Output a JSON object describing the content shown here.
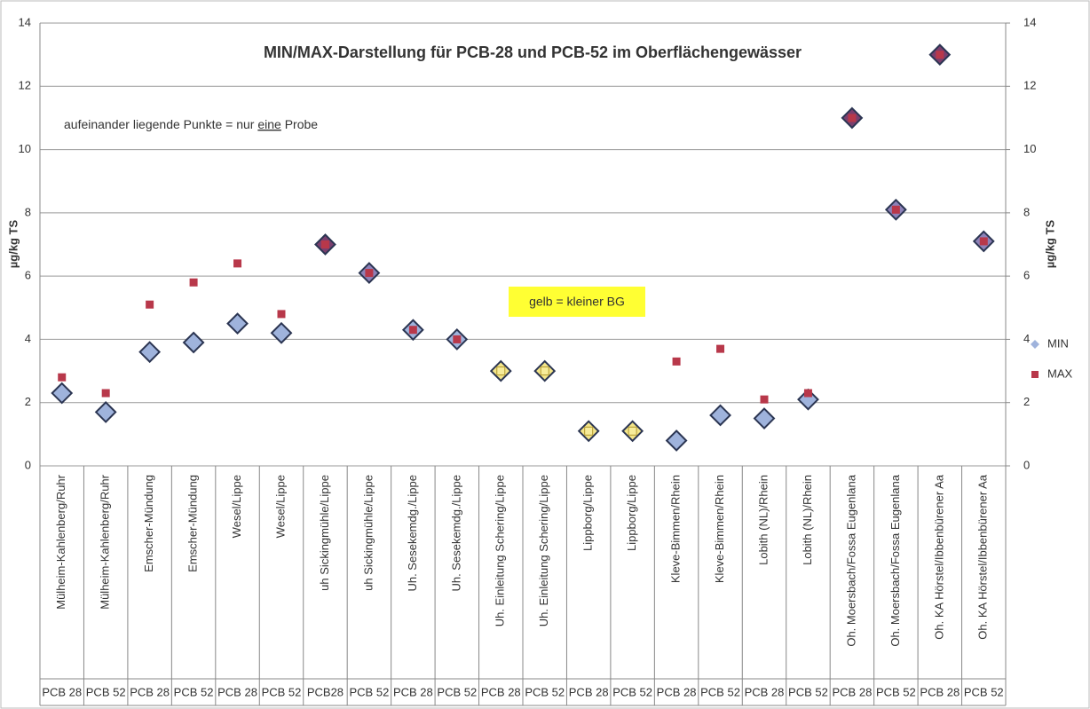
{
  "chart_data": {
    "type": "scatter",
    "title": "MIN/MAX-Darstellung für PCB-28 und PCB-52 im Oberflächengewässer",
    "annotation_parts": [
      "aufeinander liegende Punkte = nur ",
      "eine",
      " Probe"
    ],
    "annotation_2": "gelb = kleiner BG",
    "y_label": "µg/kg TS",
    "y2_label": "µg/kg TS",
    "categories": [
      "Mülheim-Kahlenberg/Ruhr",
      "Mülheim-Kahlenberg/Ruhr",
      "Emscher-Mündung",
      "Emscher-Mündung",
      "Wesel/Lippe",
      "Wesel/Lippe",
      "uh Sickingmühle/Lippe",
      "uh Sickingmühle/Lippe",
      "Uh. Sesekemdg./Lippe",
      "Uh. Sesekemdg./Lippe",
      "Uh. Einleitung Schering/Lippe",
      "Uh. Einleitung Schering/Lippe",
      "Lippborg/Lippe",
      "Lippborg/Lippe",
      "Kleve-Bimmen/Rhein",
      "Kleve-Bimmen/Rhein",
      "Lobith (NL)/Rhein",
      "Lobith (NL)/Rhein",
      "Oh. Moersbach/Fossa Eugenlana",
      "Oh. Moersbach/Fossa Eugenlana",
      "Oh. KA Hörstel/Ibbenbürener Aa",
      "Oh. KA Hörstel/Ibbenbürener Aa"
    ],
    "sub_categories": [
      "PCB 28",
      "PCB 52",
      "PCB 28",
      "PCB 52",
      "PCB 28",
      "PCB 52",
      "PCB28",
      "PCB 52",
      "PCB 28",
      "PCB 52",
      "PCB 28",
      "PCB 52",
      "PCB 28",
      "PCB 52",
      "PCB 28",
      "PCB 52",
      "PCB 28",
      "PCB 52",
      "PCB 28",
      "PCB 52",
      "PCB 28",
      "PCB 52"
    ],
    "series": [
      {
        "name": "MIN",
        "color": "#9fb3dc",
        "marker": "diamond",
        "point_colors": [
          "#9fb3dc",
          "#9fb3dc",
          "#9fb3dc",
          "#9fb3dc",
          "#9fb3dc",
          "#9fb3dc",
          "#7a3f6e",
          "#8d82b8",
          "#9fb3dc",
          "#9fb3dc",
          "#f3e58a",
          "#f3e58a",
          "#f3e58a",
          "#f3e58a",
          "#9fb3dc",
          "#9fb3dc",
          "#9fb3dc",
          "#9fb3dc",
          "#7a3f6e",
          "#8d82b8",
          "#7a3f6e",
          "#8d82b8"
        ],
        "values": [
          2.3,
          1.7,
          3.6,
          3.9,
          4.5,
          4.2,
          7.0,
          6.1,
          4.3,
          4.0,
          3.0,
          3.0,
          1.1,
          1.1,
          0.8,
          1.6,
          1.5,
          2.1,
          11,
          8.1,
          13,
          7.1
        ]
      },
      {
        "name": "MAX",
        "color": "#b8384a",
        "marker": "square",
        "point_colors": [
          "#b8384a",
          "#b8384a",
          "#b8384a",
          "#b8384a",
          "#b8384a",
          "#b8384a",
          "#b8384a",
          "#b8384a",
          "#b8384a",
          "#b8384a",
          "#f7ec9a",
          "#f7ec9a",
          "#f7ec9a",
          "#f7ec9a",
          "#b8384a",
          "#b8384a",
          "#b8384a",
          "#b8384a",
          "#b8384a",
          "#b8384a",
          "#b8384a",
          "#b8384a"
        ],
        "values": [
          2.8,
          2.3,
          5.1,
          5.8,
          6.4,
          4.8,
          7.0,
          6.1,
          4.3,
          4.0,
          3.0,
          3.0,
          1.1,
          1.1,
          3.3,
          3.7,
          2.1,
          2.3,
          11,
          8.1,
          13,
          7.1
        ]
      }
    ],
    "ylim": [
      0,
      14
    ],
    "yticks": [
      0,
      2,
      4,
      6,
      8,
      10,
      12,
      14
    ],
    "y2lim": [
      0,
      14
    ],
    "y2ticks": [
      0,
      2,
      4,
      6,
      8,
      10,
      12,
      14
    ],
    "grid": true,
    "legend": "right"
  }
}
